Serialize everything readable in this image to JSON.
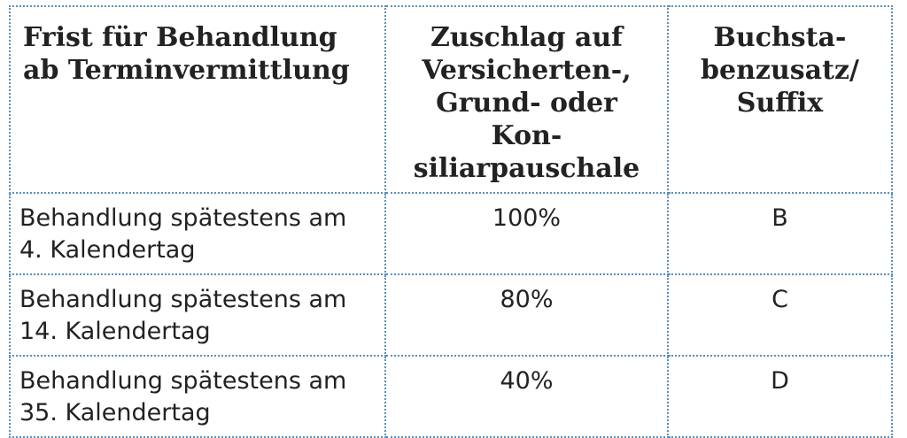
{
  "table": {
    "headers": [
      "Frist für Behandlung ab Terminvermittlung",
      "Zuschlag auf Versicherten-, Grund- oder Konsiliarpauschale",
      "Buchstabenzusatz/ Suffix"
    ],
    "header_lines": [
      [
        "Frist für Behandlung",
        "ab Terminvermittlung"
      ],
      [
        "Zuschlag auf",
        "Versicherten-,",
        "Grund- oder Kon-",
        "siliarpauschale"
      ],
      [
        "Buchsta-",
        "benzusatz/",
        "Suffix"
      ]
    ],
    "rows": [
      {
        "frist_lines": [
          "Behandlung spätestens am",
          "4. Kalendertag"
        ],
        "zuschlag": "100%",
        "suffix": "B"
      },
      {
        "frist_lines": [
          "Behandlung spätestens am",
          "14. Kalendertag"
        ],
        "zuschlag": "80%",
        "suffix": "C"
      },
      {
        "frist_lines": [
          "Behandlung spätestens am",
          "35. Kalendertag"
        ],
        "zuschlag": "40%",
        "suffix": "D"
      }
    ]
  },
  "colors": {
    "border": "#5a8fb8",
    "text": "#222222",
    "background": "#ffffff"
  }
}
